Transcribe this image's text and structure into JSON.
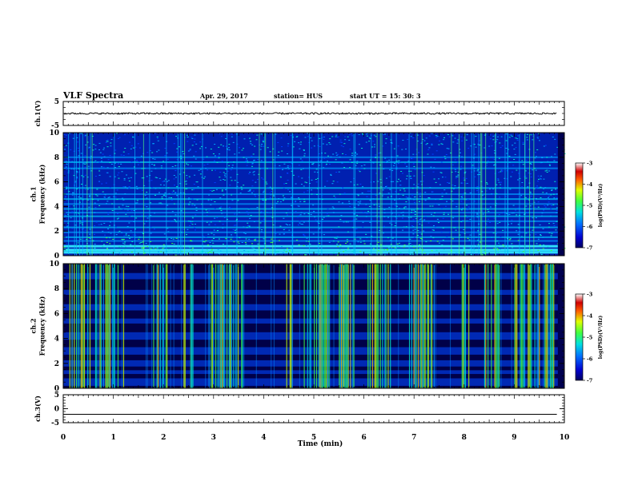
{
  "header": {
    "title": "VLF Spectra",
    "date": "Apr. 29, 2017",
    "station": "station= HUS",
    "start_time": "start  UT =  15: 30: 3"
  },
  "colors": {
    "spectrogram_cmap": [
      "#000060",
      "#0000c8",
      "#0040ff",
      "#00a8ff",
      "#00e8c8",
      "#40ff40",
      "#c8ff00",
      "#ffd000",
      "#ff4000",
      "#c00000",
      "#ffffff"
    ],
    "trace": "#000000"
  },
  "chart_data": [
    {
      "type": "line",
      "panel": "ch1-waveform",
      "ylabel": "ch.1(V)",
      "ylim": [
        -5,
        5
      ],
      "y_ticks": [
        "5",
        "-5"
      ],
      "x": [
        0,
        9.85
      ],
      "note_shape": "dense noise waveform, amplitude about ±0.2 V around 0",
      "values": [
        0,
        0
      ]
    },
    {
      "type": "heatmap",
      "panel": "ch1-spectrogram",
      "ylabel": "ch.1\nFrequency (kHz)",
      "ylim": [
        0,
        10
      ],
      "y_ticks": [
        "0",
        "2",
        "4",
        "6",
        "8",
        "10"
      ],
      "xlim": [
        0,
        10
      ],
      "colorbar": {
        "label": "log(PSD)(V²/Hz)",
        "range": [
          -7,
          -3
        ],
        "ticks": [
          "-3",
          "-4",
          "-5",
          "-6",
          "-7"
        ]
      }
    },
    {
      "type": "heatmap",
      "panel": "ch2-spectrogram",
      "ylabel": "ch.2\nFrequency (kHz)",
      "ylim": [
        0,
        10
      ],
      "y_ticks": [
        "0",
        "2",
        "4",
        "6",
        "8",
        "10"
      ],
      "xlim": [
        0,
        10
      ],
      "colorbar": {
        "label": "log(PSD)(V²/Hz)",
        "range": [
          -7,
          -3
        ],
        "ticks": [
          "-3",
          "-4",
          "-5",
          "-6",
          "-7"
        ]
      }
    },
    {
      "type": "line",
      "panel": "ch3-waveform",
      "ylabel": "ch.3(V)",
      "ylim": [
        -5,
        5
      ],
      "y_ticks": [
        "5",
        "0",
        "-5"
      ],
      "x": [
        0,
        9.85
      ],
      "values": [
        -2,
        -2
      ]
    }
  ],
  "x_axis": {
    "label": "Time (min)",
    "ticks": [
      "0",
      "1",
      "2",
      "3",
      "4",
      "5",
      "6",
      "7",
      "8",
      "9",
      "10"
    ],
    "range": [
      0,
      10
    ]
  }
}
